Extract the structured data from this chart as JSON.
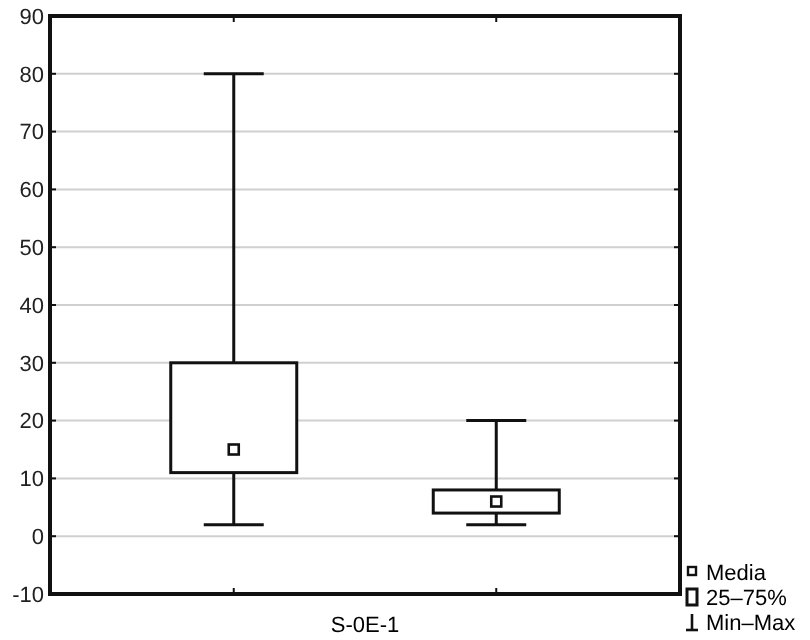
{
  "chart_data": {
    "type": "box",
    "xlabel": "S-0E-1",
    "categories": [
      null,
      null
    ],
    "boxes": [
      {
        "low": 2,
        "q1": 11,
        "median": 15,
        "q3": 30,
        "high": 80
      },
      {
        "low": 2,
        "q1": 4,
        "median": 6,
        "q3": 8,
        "high": 20
      }
    ],
    "ylim": [
      -10,
      90
    ],
    "yticks": [
      -10,
      0,
      10,
      20,
      30,
      40,
      50,
      60,
      70,
      80,
      90
    ],
    "grid": "y",
    "annotations": [
      "Media",
      "25–75%",
      "Min–Max"
    ]
  }
}
